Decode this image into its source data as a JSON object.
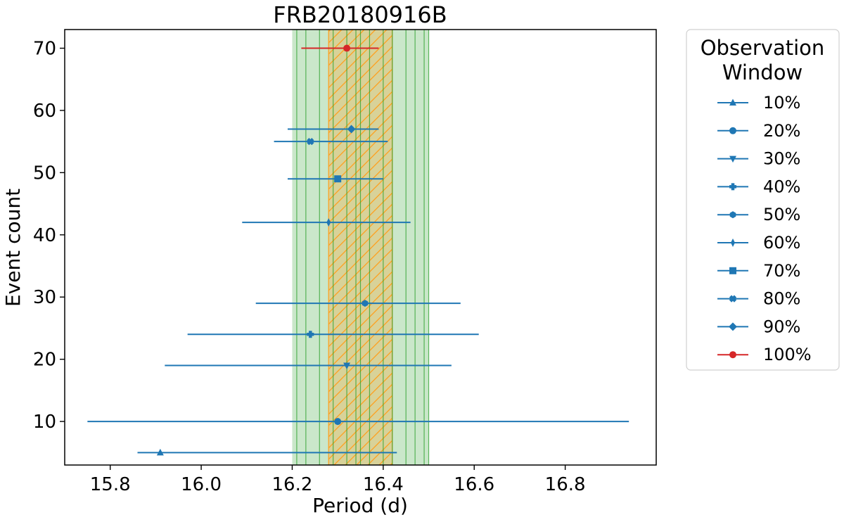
{
  "chart_data": {
    "type": "scatter",
    "title": "FRB20180916B",
    "xlabel": "Period (d)",
    "ylabel": "Event count",
    "xlim": [
      15.7,
      17.0
    ],
    "ylim": [
      3,
      73
    ],
    "xticks": [
      15.8,
      16.0,
      16.2,
      16.4,
      16.6,
      16.8
    ],
    "xtick_labels": [
      "15.8",
      "16.0",
      "16.2",
      "16.4",
      "16.6",
      "16.8"
    ],
    "yticks": [
      10,
      20,
      30,
      40,
      50,
      60,
      70
    ],
    "ytick_labels": [
      "10",
      "20",
      "30",
      "40",
      "50",
      "60",
      "70"
    ],
    "grid": false,
    "legend": {
      "title_lines": [
        "Observation",
        "Window"
      ],
      "placement": "outside-right"
    },
    "bands": [
      {
        "kind": "green-shaded",
        "x0": 16.2,
        "x1": 16.5,
        "color": "#2ca02c"
      },
      {
        "kind": "orange-hatched",
        "x0": 16.28,
        "x1": 16.42,
        "color": "#ff9f1c"
      }
    ],
    "band_lines": [
      16.21,
      16.23,
      16.26,
      16.29,
      16.32,
      16.34,
      16.35,
      16.37,
      16.4,
      16.42,
      16.45,
      16.47,
      16.49,
      16.5
    ],
    "series": [
      {
        "name": "10%",
        "marker": "triangle-up",
        "color": "#1f77b4",
        "x": 15.91,
        "y": 5,
        "xerr_low": 15.86,
        "xerr_high": 16.43
      },
      {
        "name": "20%",
        "marker": "circle",
        "color": "#1f77b4",
        "x": 16.3,
        "y": 10,
        "xerr_low": 15.75,
        "xerr_high": 16.94
      },
      {
        "name": "30%",
        "marker": "triangle-down",
        "color": "#1f77b4",
        "x": 16.32,
        "y": 19,
        "xerr_low": 15.92,
        "xerr_high": 16.55
      },
      {
        "name": "40%",
        "marker": "plus",
        "color": "#1f77b4",
        "x": 16.24,
        "y": 24,
        "xerr_low": 15.97,
        "xerr_high": 16.61
      },
      {
        "name": "50%",
        "marker": "hexagon",
        "color": "#1f77b4",
        "x": 16.36,
        "y": 29,
        "xerr_low": 16.12,
        "xerr_high": 16.57
      },
      {
        "name": "60%",
        "marker": "thin-diamond",
        "color": "#1f77b4",
        "x": 16.28,
        "y": 42,
        "xerr_low": 16.09,
        "xerr_high": 16.46
      },
      {
        "name": "70%",
        "marker": "square",
        "color": "#1f77b4",
        "x": 16.3,
        "y": 49,
        "xerr_low": 16.19,
        "xerr_high": 16.4
      },
      {
        "name": "80%",
        "marker": "x",
        "color": "#1f77b4",
        "x": 16.24,
        "y": 55,
        "xerr_low": 16.16,
        "xerr_high": 16.41
      },
      {
        "name": "90%",
        "marker": "diamond",
        "color": "#1f77b4",
        "x": 16.33,
        "y": 57,
        "xerr_low": 16.19,
        "xerr_high": 16.39
      },
      {
        "name": "100%",
        "marker": "circle",
        "color": "#d62728",
        "x": 16.32,
        "y": 70,
        "xerr_low": 16.22,
        "xerr_high": 16.39
      }
    ]
  }
}
